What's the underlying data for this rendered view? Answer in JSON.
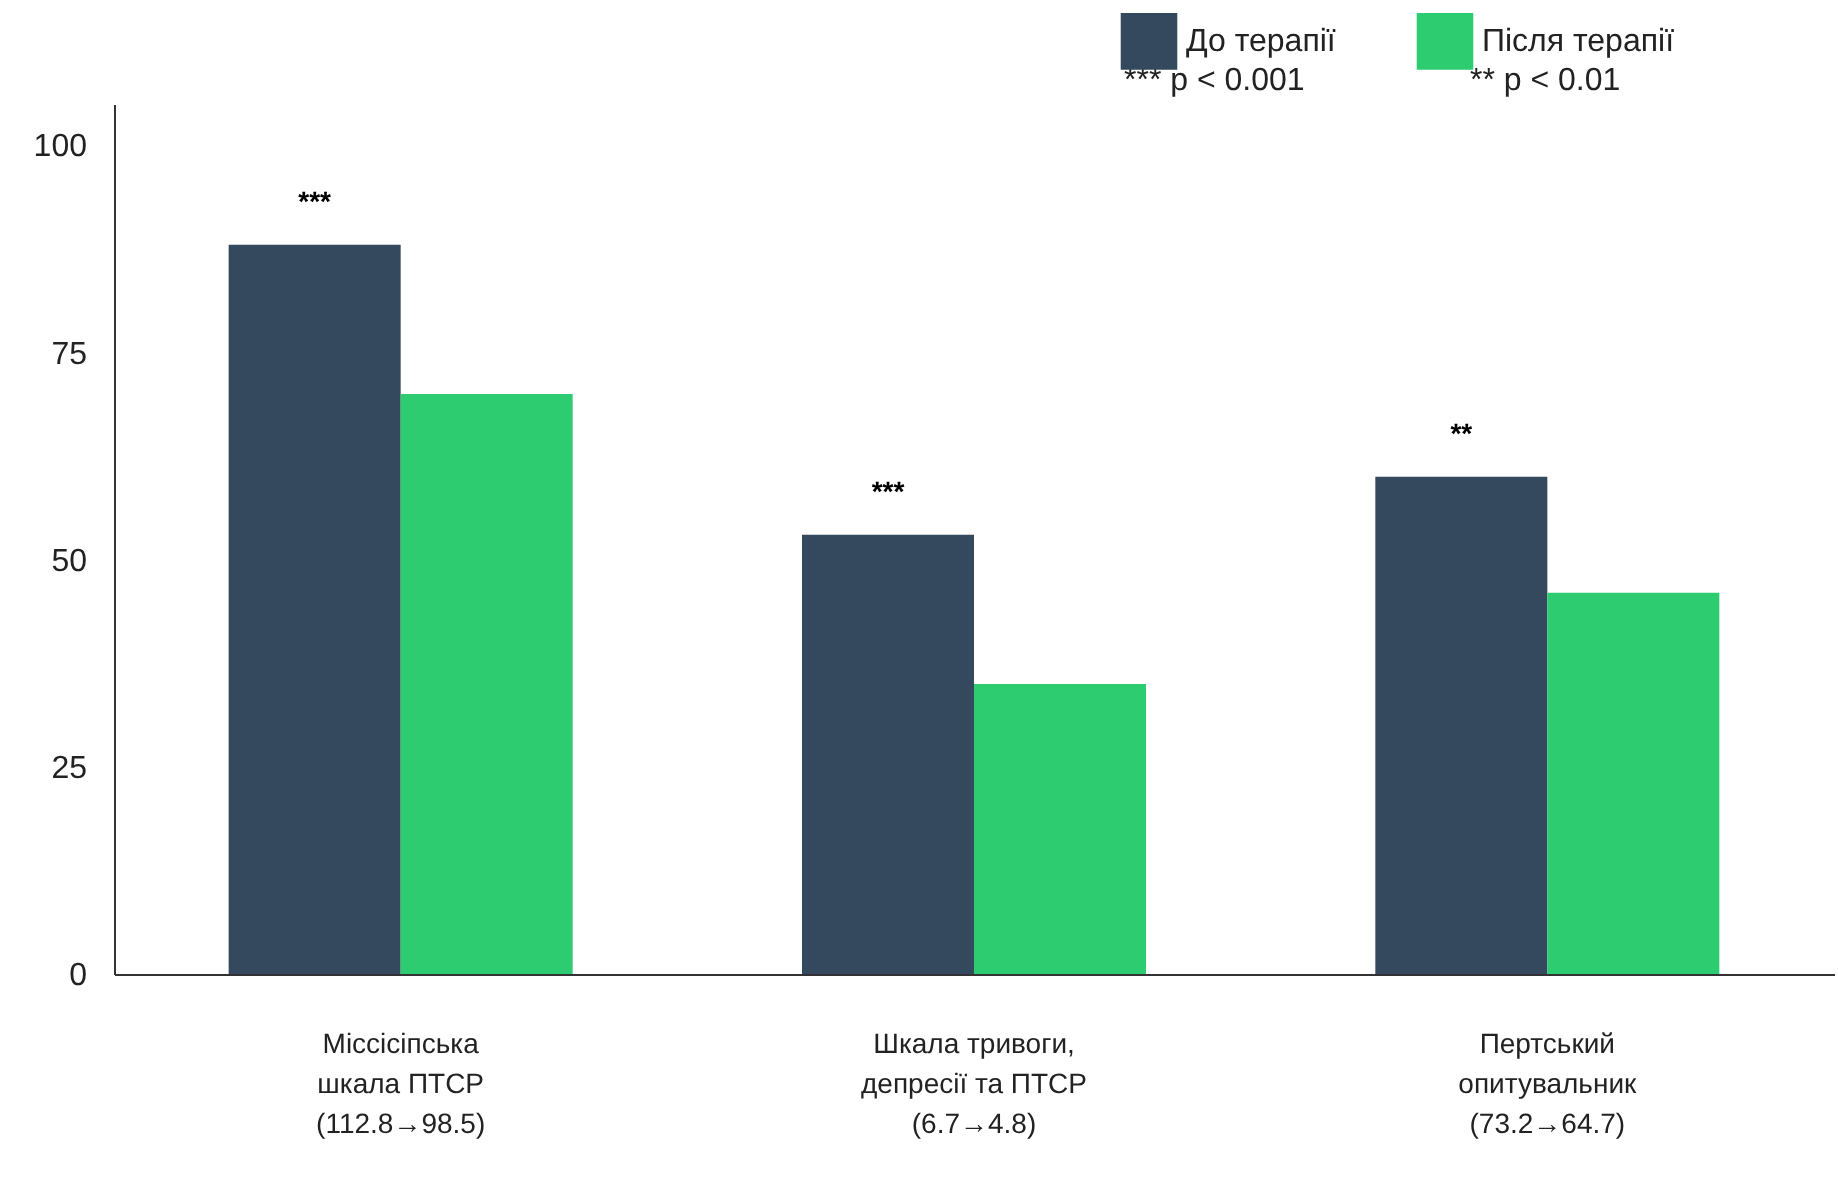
{
  "chart_data": {
    "type": "bar",
    "categories": [
      "Міссісіпська\nшкала ПТСР\n(112.8→98.5)",
      "Шкала тривоги,\nдепресії та ПТСР\n(6.7→4.8)",
      "Пертський\nопитувальник\n(73.2→64.7)"
    ],
    "series": [
      {
        "name": "До терапії",
        "color": "#34495e",
        "values": [
          88,
          53,
          60
        ]
      },
      {
        "name": "Після терапії",
        "color": "#2ecc71",
        "values": [
          70,
          35,
          46
        ]
      }
    ],
    "ylim": [
      0,
      105
    ],
    "yticks": [
      0,
      25,
      50,
      75,
      100
    ],
    "grid": false,
    "legend": "top right",
    "annotations": [
      {
        "text": "***",
        "x": "Міссісіпська\nшкала ПТСР\n(112.8→98.5)",
        "y": 88
      },
      {
        "text": "***",
        "x": "Шкала тривоги,\nдепресії та ПТСР\n(6.7→4.8)",
        "y": 53
      },
      {
        "text": "**",
        "x": "Пертський\nопитувальник\n(73.2→64.7)",
        "y": 60
      },
      "*** p < 0.001",
      "** p < 0.01"
    ]
  }
}
